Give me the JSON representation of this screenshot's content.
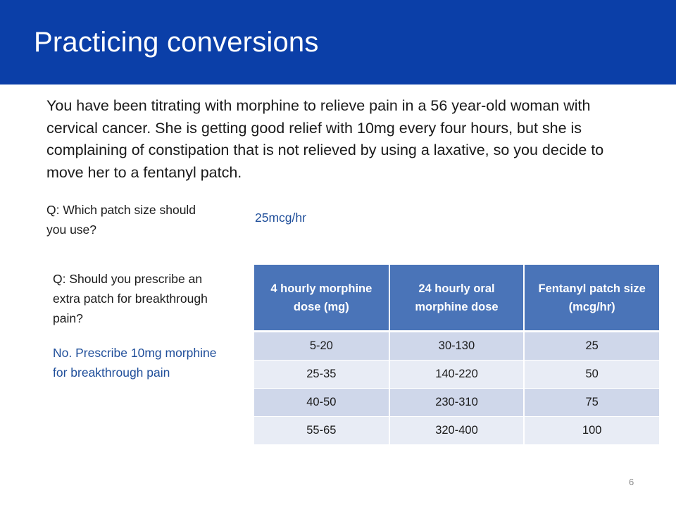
{
  "slide": {
    "title": "Practicing conversions",
    "scenario": "You have been titrating with morphine to relieve pain in a 56 year-old woman with cervical cancer. She is getting good relief with 10mg every four hours, but she is complaining of constipation that is not relieved by using a laxative, so you decide to move her to a fentanyl patch.",
    "question_1": "Q: Which patch size should you use?",
    "answer_1": "25mcg/hr",
    "question_2": "Q: Should you prescribe an extra patch for breakthrough pain?",
    "answer_2": "No. Prescribe 10mg morphine for breakthrough pain",
    "page_number": "6"
  },
  "table": {
    "headers": [
      "4 hourly morphine dose (mg)",
      "24 hourly oral morphine dose",
      "Fentanyl patch size (mcg/hr)"
    ],
    "rows": [
      [
        "5-20",
        "30-130",
        "25"
      ],
      [
        "25-35",
        "140-220",
        "50"
      ],
      [
        "40-50",
        "230-310",
        "75"
      ],
      [
        "55-65",
        "320-400",
        "100"
      ]
    ]
  },
  "colors": {
    "title_bar": "#0b3fa8",
    "header_fill": "#4a74b8",
    "row_dark": "#cfd7ea",
    "row_light": "#e8ecf5",
    "answer_text": "#1f4e9a"
  }
}
